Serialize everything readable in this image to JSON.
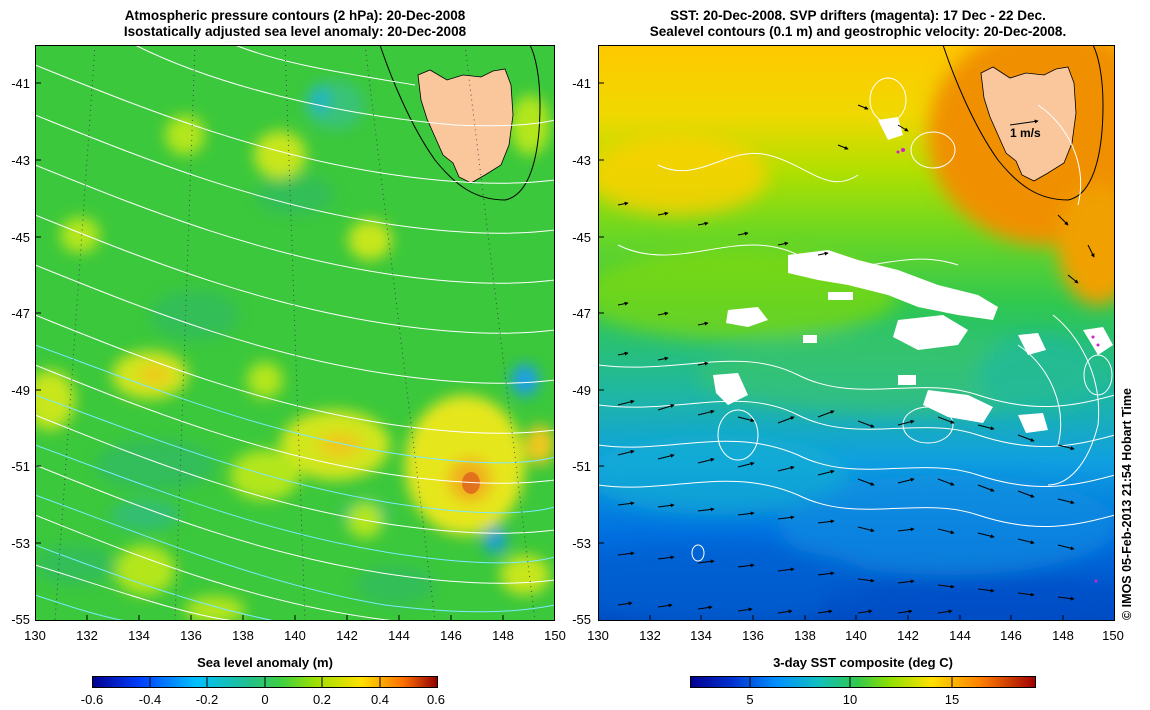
{
  "left_panel": {
    "title_line1": "Atmospheric pressure contours (2 hPa): 20-Dec-2008",
    "title_line2": "Isostatically adjusted sea level anomaly: 20-Dec-2008",
    "y_ticks": [
      "-41",
      "-43",
      "-45",
      "-47",
      "-49",
      "-51",
      "-53",
      "-55"
    ],
    "x_ticks": [
      "130",
      "132",
      "134",
      "136",
      "138",
      "140",
      "142",
      "144",
      "146",
      "148",
      "150"
    ],
    "colorbar_label": "Sea level anomaly (m)",
    "colorbar_ticks": [
      "-0.6",
      "-0.4",
      "-0.2",
      "0",
      "0.2",
      "0.4",
      "0.6"
    ]
  },
  "right_panel": {
    "title_line1": "SST: 20-Dec-2008. SVP drifters (magenta): 17 Dec - 22 Dec.",
    "title_line2": "Sealevel contours (0.1 m) and geostrophic velocity: 20-Dec-2008.",
    "y_ticks": [
      "-41",
      "-43",
      "-45",
      "-47",
      "-49",
      "-51",
      "-53",
      "-55"
    ],
    "x_ticks": [
      "130",
      "132",
      "134",
      "136",
      "138",
      "140",
      "142",
      "144",
      "146",
      "148",
      "150"
    ],
    "velocity_scale_label": "1 m/s",
    "colorbar_label": "3-day SST composite (deg C)",
    "colorbar_ticks": [
      "5",
      "10",
      "15"
    ]
  },
  "copyright": "© IMOS 05-Feb-2013 21:54 Hobart Time",
  "colors": {
    "land": "#f9c79b",
    "sla_background": "#3cc83c",
    "colormap": [
      "#00008f",
      "#0050ff",
      "#00d0ff",
      "#2ec870",
      "#7fe000",
      "#ffe000",
      "#ff8000",
      "#c00000",
      "#800000"
    ]
  }
}
